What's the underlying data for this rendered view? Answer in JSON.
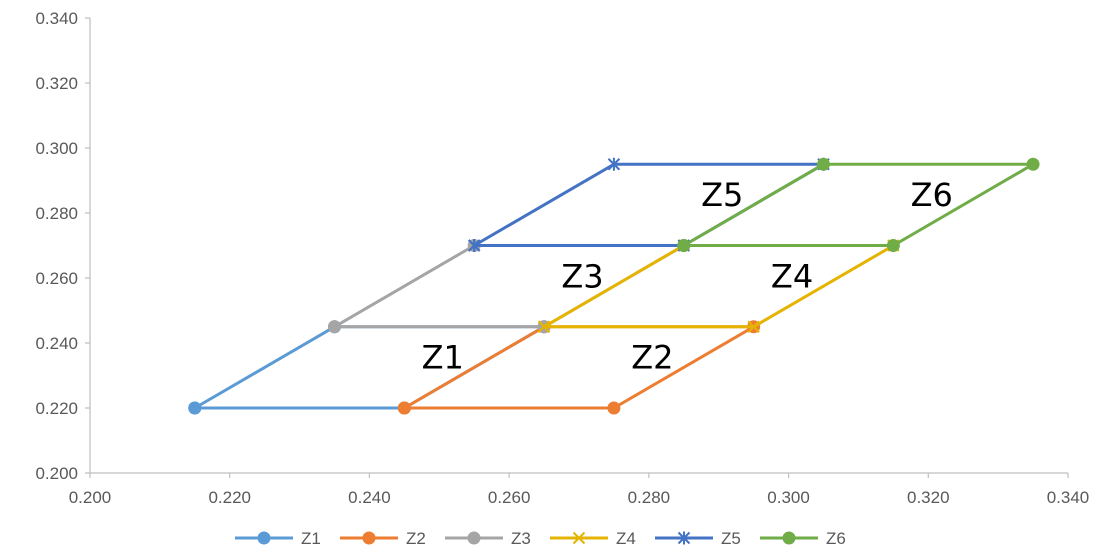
{
  "chart_data": {
    "type": "scatter",
    "title": "",
    "xlabel": "",
    "ylabel": "",
    "xlim": [
      0.2,
      0.34
    ],
    "ylim": [
      0.2,
      0.34
    ],
    "x_ticks": [
      "0.200",
      "0.220",
      "0.240",
      "0.260",
      "0.280",
      "0.300",
      "0.320",
      "0.340"
    ],
    "y_ticks": [
      "0.200",
      "0.220",
      "0.240",
      "0.260",
      "0.280",
      "0.300",
      "0.320",
      "0.340"
    ],
    "grid": false,
    "legend_position": "bottom",
    "series": [
      {
        "name": "Z1",
        "color": "#5B9BD5",
        "marker": "circle",
        "points": [
          [
            0.215,
            0.22
          ],
          [
            0.235,
            0.245
          ],
          [
            0.265,
            0.245
          ],
          [
            0.245,
            0.22
          ],
          [
            0.215,
            0.22
          ]
        ]
      },
      {
        "name": "Z2",
        "color": "#ED7D31",
        "marker": "circle",
        "points": [
          [
            0.245,
            0.22
          ],
          [
            0.265,
            0.245
          ],
          [
            0.295,
            0.245
          ],
          [
            0.275,
            0.22
          ],
          [
            0.245,
            0.22
          ]
        ]
      },
      {
        "name": "Z3",
        "color": "#A5A5A5",
        "marker": "circle",
        "points": [
          [
            0.235,
            0.245
          ],
          [
            0.255,
            0.27
          ],
          [
            0.285,
            0.27
          ],
          [
            0.265,
            0.245
          ],
          [
            0.235,
            0.245
          ]
        ]
      },
      {
        "name": "Z4",
        "color": "#E5B400",
        "marker": "x",
        "points": [
          [
            0.265,
            0.245
          ],
          [
            0.285,
            0.27
          ],
          [
            0.315,
            0.27
          ],
          [
            0.295,
            0.245
          ],
          [
            0.265,
            0.245
          ]
        ]
      },
      {
        "name": "Z5",
        "color": "#4472C4",
        "marker": "star",
        "points": [
          [
            0.255,
            0.27
          ],
          [
            0.275,
            0.295
          ],
          [
            0.305,
            0.295
          ],
          [
            0.285,
            0.27
          ],
          [
            0.255,
            0.27
          ]
        ]
      },
      {
        "name": "Z6",
        "color": "#70AD47",
        "marker": "circle",
        "points": [
          [
            0.285,
            0.27
          ],
          [
            0.305,
            0.295
          ],
          [
            0.335,
            0.295
          ],
          [
            0.315,
            0.27
          ],
          [
            0.285,
            0.27
          ]
        ]
      }
    ],
    "annotations": [
      {
        "text": "Z1",
        "x": 0.2505,
        "y": 0.2355
      },
      {
        "text": "Z2",
        "x": 0.2805,
        "y": 0.2355
      },
      {
        "text": "Z3",
        "x": 0.2705,
        "y": 0.2605
      },
      {
        "text": "Z4",
        "x": 0.3005,
        "y": 0.2605
      },
      {
        "text": "Z5",
        "x": 0.2905,
        "y": 0.2855
      },
      {
        "text": "Z6",
        "x": 0.3205,
        "y": 0.2855
      }
    ]
  }
}
